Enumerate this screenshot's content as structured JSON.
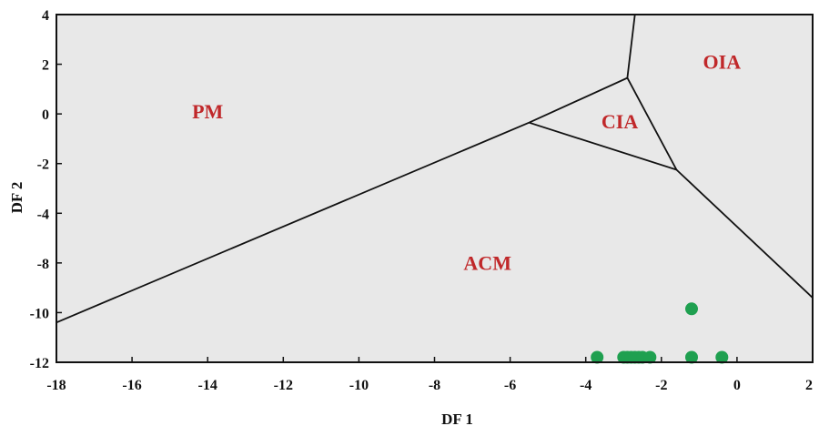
{
  "chart_data": {
    "type": "scatter",
    "title": "",
    "xlabel": "DF 1",
    "ylabel": "DF 2",
    "xlim": [
      -18,
      2
    ],
    "ylim": [
      -12,
      4
    ],
    "x_ticks": [
      -18,
      -16,
      -14,
      -12,
      -10,
      -8,
      -6,
      -4,
      -2,
      0,
      2
    ],
    "y_ticks": [
      4,
      2,
      0,
      -2,
      -4,
      -8,
      -10,
      -12
    ],
    "y_tick_labels": [
      "4",
      "2",
      "0",
      "-2",
      "-4",
      "-8",
      "-10",
      "-12"
    ],
    "plot_background": "#e8e8e8",
    "region_label_color": "#c0282a",
    "point_color": "#1fa050",
    "regions": [
      {
        "label": "PM",
        "x": -14,
        "y": 0
      },
      {
        "label": "CIA",
        "x": -3.1,
        "y": -0.4
      },
      {
        "label": "OIA",
        "x": -0.4,
        "y": 2.0
      },
      {
        "label": "ACM",
        "x": -6.6,
        "y": -8.1
      }
    ],
    "boundaries": [
      [
        [
          -18,
          -10.4
        ],
        [
          -5.5,
          -0.35
        ],
        [
          -2.9,
          1.45
        ],
        [
          -2.7,
          4.0
        ]
      ],
      [
        [
          -5.5,
          -0.35
        ],
        [
          -1.6,
          -2.25
        ],
        [
          -2.9,
          1.45
        ]
      ],
      [
        [
          -1.6,
          -2.25
        ],
        [
          2.0,
          -9.4
        ]
      ]
    ],
    "series": [
      {
        "points": [
          {
            "x": -3.7,
            "y": -11.8
          },
          {
            "x": -3.0,
            "y": -11.8
          },
          {
            "x": -2.9,
            "y": -11.8
          },
          {
            "x": -2.8,
            "y": -11.8
          },
          {
            "x": -2.7,
            "y": -11.8
          },
          {
            "x": -2.6,
            "y": -11.8
          },
          {
            "x": -2.5,
            "y": -11.8
          },
          {
            "x": -2.3,
            "y": -11.8
          },
          {
            "x": -1.2,
            "y": -9.85
          },
          {
            "x": -1.2,
            "y": -11.8
          },
          {
            "x": -0.4,
            "y": -11.8
          }
        ]
      }
    ]
  }
}
